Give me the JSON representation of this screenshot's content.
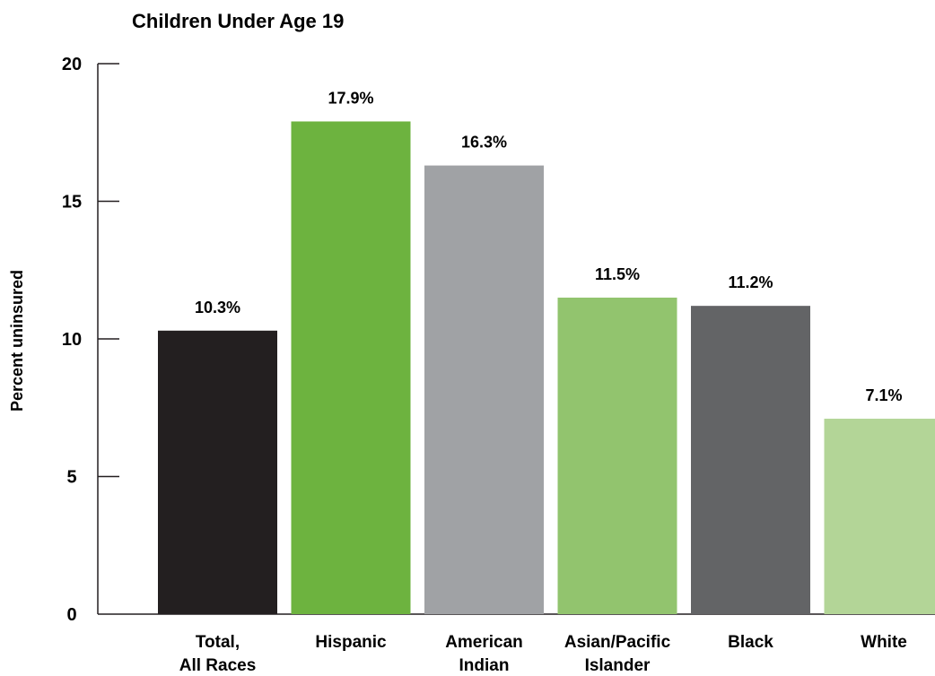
{
  "chart_data": {
    "type": "bar",
    "title": "Children Under Age 19",
    "ylabel": "Percent uninsured",
    "xlabel": "",
    "ylim": [
      0,
      20
    ],
    "yticks": [
      0,
      5,
      10,
      15,
      20
    ],
    "grid": false,
    "categories": [
      [
        "Total,",
        "All Races"
      ],
      [
        "Hispanic"
      ],
      [
        "American",
        "Indian"
      ],
      [
        "Asian/Pacific",
        "Islander"
      ],
      [
        "Black"
      ],
      [
        "White"
      ]
    ],
    "values": [
      10.3,
      17.9,
      16.3,
      11.5,
      11.2,
      7.1
    ],
    "value_labels": [
      "10.3%",
      "17.9%",
      "16.3%",
      "11.5%",
      "11.2%",
      "7.1%"
    ],
    "colors": [
      "#231f20",
      "#6db33f",
      "#a0a2a5",
      "#92c46e",
      "#636466",
      "#b3d597"
    ]
  }
}
